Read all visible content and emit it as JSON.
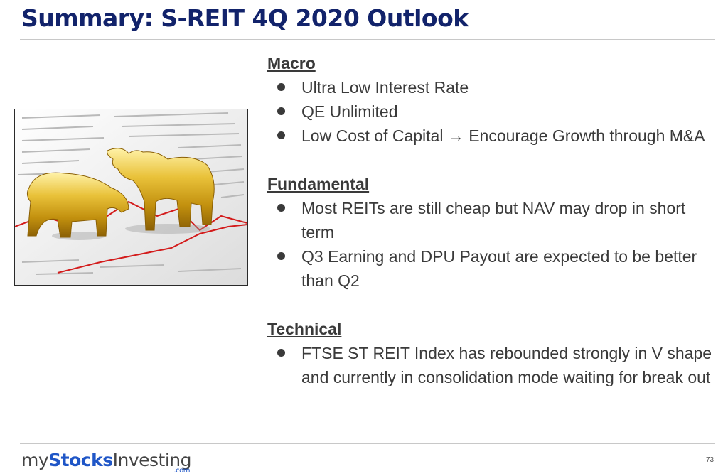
{
  "title": "Summary: S-REIT 4Q 2020 Outlook",
  "image": {
    "description_icon": "gold-bull-and-bear-image"
  },
  "sections": [
    {
      "heading": "Macro",
      "bullets": [
        "Ultra Low Interest Rate",
        "QE Unlimited",
        "Low Cost of Capital → Encourage Growth through M&A"
      ]
    },
    {
      "heading": "Fundamental",
      "bullets": [
        "Most REITs are still cheap but NAV may drop in short term",
        "Q3 Earning and DPU Payout are expected to be better than Q2"
      ]
    },
    {
      "heading": "Technical",
      "bullets": [
        "FTSE ST REIT Index has rebounded strongly in V shape and currently in consolidation mode waiting for break out"
      ]
    }
  ],
  "logo": {
    "my": "my",
    "stocks": "Stocks",
    "investing": "Investing",
    "com": ".com"
  },
  "page_number": "73",
  "colors": {
    "title": "#12236b",
    "text": "#3a3a3a",
    "logo_accent": "#1f56c7",
    "gold": "#d4a517"
  }
}
